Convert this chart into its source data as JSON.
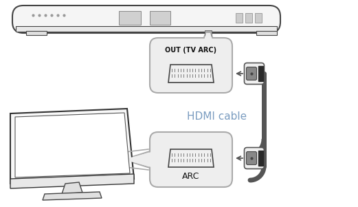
{
  "bg_color": "#ffffff",
  "line_color": "#444444",
  "box_fill": "#eeeeee",
  "box_edge": "#aaaaaa",
  "hdmi_label_color": "#7a9cc0",
  "hdmi_label": "HDMI cable",
  "out_label": "OUT (TV ARC)",
  "arc_label": "ARC",
  "figsize": [
    5.21,
    3.01
  ],
  "dpi": 100,
  "cable_color": "#555555",
  "connector_body": "#e0e0e0",
  "connector_edge": "#666666",
  "connector_dark": "#333333"
}
